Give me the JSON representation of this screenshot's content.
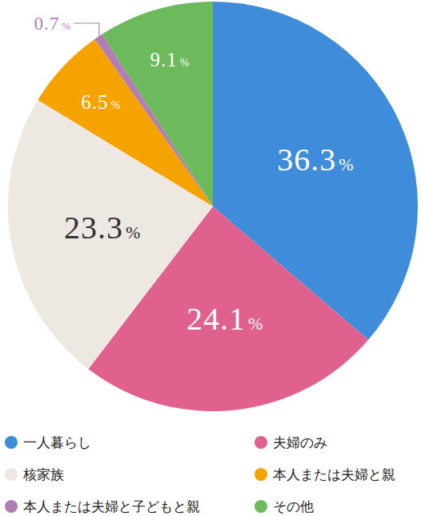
{
  "chart_data": {
    "type": "pie",
    "categories": [
      "一人暮らし",
      "夫婦のみ",
      "核家族",
      "本人または夫婦と親",
      "本人または夫婦と子どもと親",
      "その他"
    ],
    "values": [
      36.3,
      24.1,
      23.3,
      6.5,
      0.7,
      9.1
    ],
    "value_labels": [
      "36.3%",
      "24.1%",
      "23.3%",
      "6.5%",
      "0.7%",
      "9.1%"
    ],
    "colors": [
      "#3f8cda",
      "#e0608e",
      "#ede8e1",
      "#f4a300",
      "#b07eb2",
      "#6cba5b"
    ],
    "data_labels": true,
    "legend": "bottom"
  }
}
